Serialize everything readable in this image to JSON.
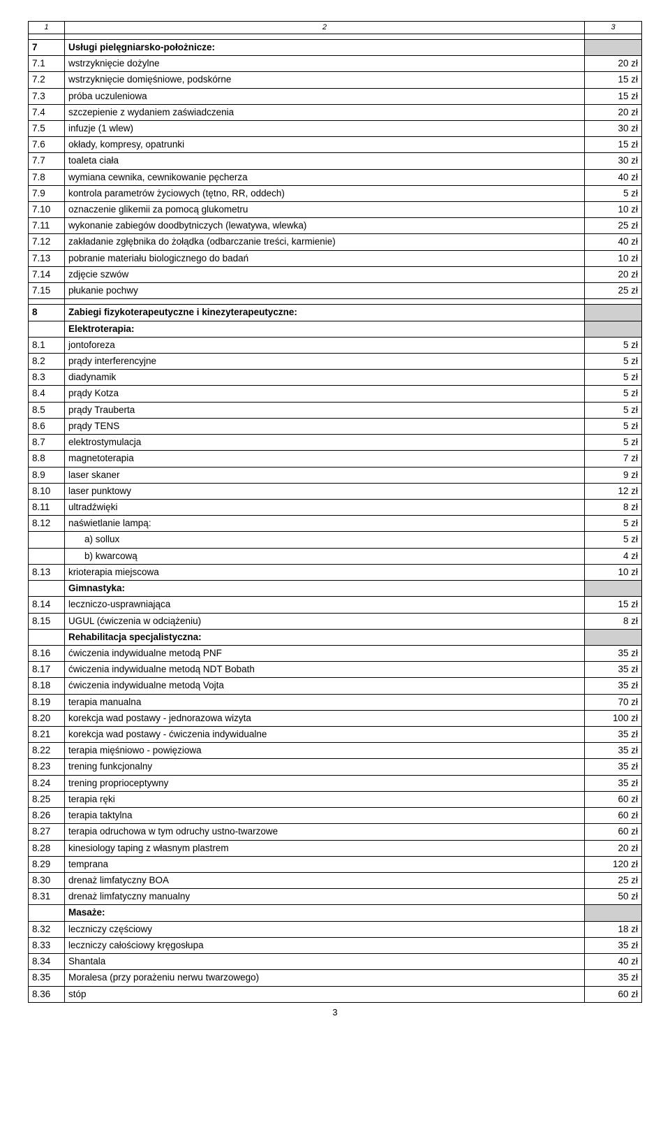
{
  "header": {
    "c1": "1",
    "c2": "2",
    "c3": "3"
  },
  "sections": [
    {
      "num": "7",
      "title": "Usługi pielęgniarsko-położnicze:",
      "rows": [
        {
          "n": "7.1",
          "d": "wstrzyknięcie dożylne",
          "p": "20 zł"
        },
        {
          "n": "7.2",
          "d": "wstrzyknięcie domięśniowe, podskórne",
          "p": "15 zł"
        },
        {
          "n": "7.3",
          "d": "próba uczuleniowa",
          "p": "15 zł"
        },
        {
          "n": "7.4",
          "d": "szczepienie z wydaniem zaświadczenia",
          "p": "20 zł"
        },
        {
          "n": "7.5",
          "d": "infuzje (1 wlew)",
          "p": "30 zł"
        },
        {
          "n": "7.6",
          "d": "okłady, kompresy, opatrunki",
          "p": "15 zł"
        },
        {
          "n": "7.7",
          "d": "toaleta ciała",
          "p": "30 zł"
        },
        {
          "n": "7.8",
          "d": "wymiana cewnika, cewnikowanie pęcherza",
          "p": "40 zł"
        },
        {
          "n": "7.9",
          "d": "kontrola parametrów życiowych (tętno, RR, oddech)",
          "p": "5 zł"
        },
        {
          "n": "7.10",
          "d": "oznaczenie glikemii za pomocą glukometru",
          "p": "10 zł"
        },
        {
          "n": "7.11",
          "d": "wykonanie zabiegów doodbytniczych (lewatywa, wlewka)",
          "p": "25 zł"
        },
        {
          "n": "7.12",
          "d": "zakładanie zgłębnika do żołądka (odbarczanie treści, karmienie)",
          "p": "40 zł"
        },
        {
          "n": "7.13",
          "d": "pobranie materiału biologicznego do badań",
          "p": "10 zł"
        },
        {
          "n": "7.14",
          "d": "zdjęcie szwów",
          "p": "20 zł"
        },
        {
          "n": "7.15",
          "d": "płukanie pochwy",
          "p": "25 zł"
        }
      ]
    },
    {
      "num": "8",
      "title": "Zabiegi fizykoterapeutyczne i kinezyterapeutyczne:",
      "rows": [
        {
          "sub": "Elektroterapia:"
        },
        {
          "n": "8.1",
          "d": "jontoforeza",
          "p": "5 zł"
        },
        {
          "n": "8.2",
          "d": "prądy interferencyjne",
          "p": "5 zł"
        },
        {
          "n": "8.3",
          "d": "diadynamik",
          "p": "5 zł"
        },
        {
          "n": "8.4",
          "d": "prądy Kotza",
          "p": "5 zł"
        },
        {
          "n": "8.5",
          "d": "prądy Trauberta",
          "p": "5 zł"
        },
        {
          "n": "8.6",
          "d": "prądy TENS",
          "p": "5 zł"
        },
        {
          "n": "8.7",
          "d": "elektrostymulacja",
          "p": "5 zł"
        },
        {
          "n": "8.8",
          "d": "magnetoterapia",
          "p": "7 zł"
        },
        {
          "n": "8.9",
          "d": "laser skaner",
          "p": "9 zł"
        },
        {
          "n": "8.10",
          "d": "laser punktowy",
          "p": "12 zł"
        },
        {
          "n": "8.11",
          "d": "ultradźwięki",
          "p": "8 zł"
        },
        {
          "n": "8.12",
          "d": "naświetlanie lampą:",
          "p": "5 zł"
        },
        {
          "indent": true,
          "d": "a)  sollux",
          "p": "5 zł"
        },
        {
          "indent": true,
          "d": "b)  kwarcową",
          "p": "4 zł"
        },
        {
          "n": "8.13",
          "d": "krioterapia miejscowa",
          "p": "10 zł"
        },
        {
          "sub": "Gimnastyka:"
        },
        {
          "n": "8.14",
          "d": "leczniczo-usprawniająca",
          "p": "15 zł"
        },
        {
          "n": "8.15",
          "d": "UGUL (ćwiczenia w odciążeniu)",
          "p": "8 zł"
        },
        {
          "sub": "Rehabilitacja specjalistyczna:"
        },
        {
          "n": "8.16",
          "d": "ćwiczenia indywidualne metodą PNF",
          "p": "35 zł"
        },
        {
          "n": "8.17",
          "d": "ćwiczenia indywidualne metodą NDT Bobath",
          "p": "35 zł"
        },
        {
          "n": "8.18",
          "d": "ćwiczenia indywidualne metodą Vojta",
          "p": "35 zł"
        },
        {
          "n": "8.19",
          "d": "terapia manualna",
          "p": "70 zł"
        },
        {
          "n": "8.20",
          "d": "korekcja wad postawy - jednorazowa wizyta",
          "p": "100 zł"
        },
        {
          "n": "8.21",
          "d": "korekcja wad postawy - ćwiczenia indywidualne",
          "p": "35 zł"
        },
        {
          "n": "8.22",
          "d": "terapia mięśniowo - powięziowa",
          "p": "35 zł"
        },
        {
          "n": "8.23",
          "d": "trening funkcjonalny",
          "p": "35 zł"
        },
        {
          "n": "8.24",
          "d": "trening proprioceptywny",
          "p": "35 zł"
        },
        {
          "n": "8.25",
          "d": "terapia ręki",
          "p": "60 zł"
        },
        {
          "n": "8.26",
          "d": "terapia taktylna",
          "p": "60 zł"
        },
        {
          "n": "8.27",
          "d": "terapia odruchowa w tym odruchy ustno-twarzowe",
          "p": "60 zł"
        },
        {
          "n": "8.28",
          "d": "kinesiology taping z własnym plastrem",
          "p": "20 zł"
        },
        {
          "n": "8.29",
          "d": "temprana",
          "p": "120 zł"
        },
        {
          "n": "8.30",
          "d": "drenaż limfatyczny BOA",
          "p": "25 zł"
        },
        {
          "n": "8.31",
          "d": "drenaż limfatyczny manualny",
          "p": "50 zł"
        },
        {
          "sub": "Masaże:"
        },
        {
          "n": "8.32",
          "d": "leczniczy częściowy",
          "p": "18 zł"
        },
        {
          "n": "8.33",
          "d": "leczniczy całościowy kręgosłupa",
          "p": "35 zł"
        },
        {
          "n": "8.34",
          "d": "Shantala",
          "p": "40 zł"
        },
        {
          "n": "8.35",
          "d": "Moralesa (przy porażeniu nerwu twarzowego)",
          "p": "35 zł"
        },
        {
          "n": "8.36",
          "d": "stóp",
          "p": "60 zł"
        }
      ]
    }
  ],
  "page_number": "3",
  "colors": {
    "shade": "#cfcfcf",
    "border": "#000000",
    "bg": "#ffffff"
  }
}
